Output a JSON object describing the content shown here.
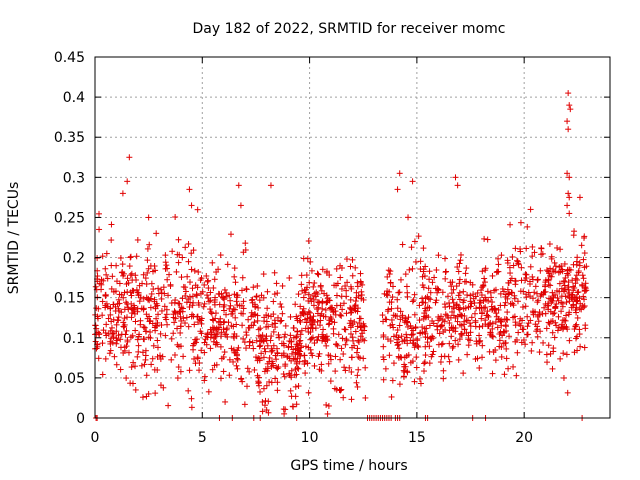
{
  "chart_data": {
    "type": "scatter",
    "title": "Day 182 of 2022, SRMTID for receiver momc",
    "xlabel": "GPS time / hours",
    "ylabel": "SRMTID / TECUs",
    "xlim": [
      0,
      24
    ],
    "ylim": [
      0,
      0.45
    ],
    "x_ticks": [
      0,
      5,
      10,
      15,
      20
    ],
    "x_tick_labels": [
      "0",
      "5",
      "10",
      "15",
      "20"
    ],
    "y_ticks": [
      0,
      0.05,
      0.1,
      0.15,
      0.2,
      0.25,
      0.3,
      0.35,
      0.4,
      0.45
    ],
    "y_tick_labels": [
      "0",
      "0.05",
      "0.1",
      "0.15",
      "0.2",
      "0.25",
      "0.3",
      "0.35",
      "0.4",
      "0.45"
    ],
    "grid": true,
    "marker": "+",
    "color": "#e00000",
    "series": [
      {
        "name": "momc",
        "segments": [
          {
            "x_start": 0.0,
            "x_end": 4.6,
            "y_center": 0.13,
            "y_spread": 0.055,
            "n": 380
          },
          {
            "x_start": 4.6,
            "x_end": 7.6,
            "y_center": 0.115,
            "y_spread": 0.05,
            "n": 240
          },
          {
            "x_start": 7.6,
            "x_end": 9.6,
            "y_center": 0.085,
            "y_spread": 0.05,
            "n": 190
          },
          {
            "x_start": 9.6,
            "x_end": 12.6,
            "y_center": 0.12,
            "y_spread": 0.05,
            "n": 280
          },
          {
            "x_start": 13.4,
            "x_end": 15.2,
            "y_center": 0.12,
            "y_spread": 0.06,
            "n": 140
          },
          {
            "x_start": 15.2,
            "x_end": 19.2,
            "y_center": 0.13,
            "y_spread": 0.045,
            "n": 330
          },
          {
            "x_start": 19.2,
            "x_end": 22.9,
            "y_center": 0.15,
            "y_spread": 0.05,
            "n": 330
          }
        ],
        "outliers": [
          {
            "x": 1.6,
            "y": 0.325
          },
          {
            "x": 1.5,
            "y": 0.295
          },
          {
            "x": 1.3,
            "y": 0.28
          },
          {
            "x": 4.4,
            "y": 0.285
          },
          {
            "x": 6.7,
            "y": 0.29
          },
          {
            "x": 8.2,
            "y": 0.29
          },
          {
            "x": 6.8,
            "y": 0.265
          },
          {
            "x": 4.5,
            "y": 0.265
          },
          {
            "x": 2.5,
            "y": 0.25
          },
          {
            "x": 14.2,
            "y": 0.305
          },
          {
            "x": 14.1,
            "y": 0.285
          },
          {
            "x": 14.8,
            "y": 0.295
          },
          {
            "x": 16.8,
            "y": 0.3
          },
          {
            "x": 16.9,
            "y": 0.29
          },
          {
            "x": 20.3,
            "y": 0.26
          },
          {
            "x": 22.05,
            "y": 0.405
          },
          {
            "x": 22.1,
            "y": 0.39
          },
          {
            "x": 22.15,
            "y": 0.385
          },
          {
            "x": 22.0,
            "y": 0.37
          },
          {
            "x": 22.05,
            "y": 0.36
          },
          {
            "x": 22.0,
            "y": 0.305
          },
          {
            "x": 22.1,
            "y": 0.3
          },
          {
            "x": 22.05,
            "y": 0.28
          },
          {
            "x": 22.1,
            "y": 0.275
          },
          {
            "x": 22.6,
            "y": 0.275
          },
          {
            "x": 22.0,
            "y": 0.265
          },
          {
            "x": 22.1,
            "y": 0.255
          },
          {
            "x": 8.0,
            "y": 0.01
          },
          {
            "x": 7.8,
            "y": 0.02
          },
          {
            "x": 10.9,
            "y": 0.015
          },
          {
            "x": 12.6,
            "y": 0.025
          },
          {
            "x": 2.5,
            "y": 0.03
          },
          {
            "x": 1.9,
            "y": 0.035
          }
        ],
        "zero_x": [
          0.05,
          0.1,
          5.8,
          6.4,
          7.4,
          7.7,
          9.4,
          12.7,
          12.8,
          12.9,
          13.0,
          13.1,
          13.2,
          13.3,
          13.4,
          13.5,
          13.6,
          13.7,
          13.8,
          14.0,
          14.1,
          14.2,
          15.4,
          15.5,
          17.6,
          18.2,
          22.7
        ]
      }
    ]
  }
}
